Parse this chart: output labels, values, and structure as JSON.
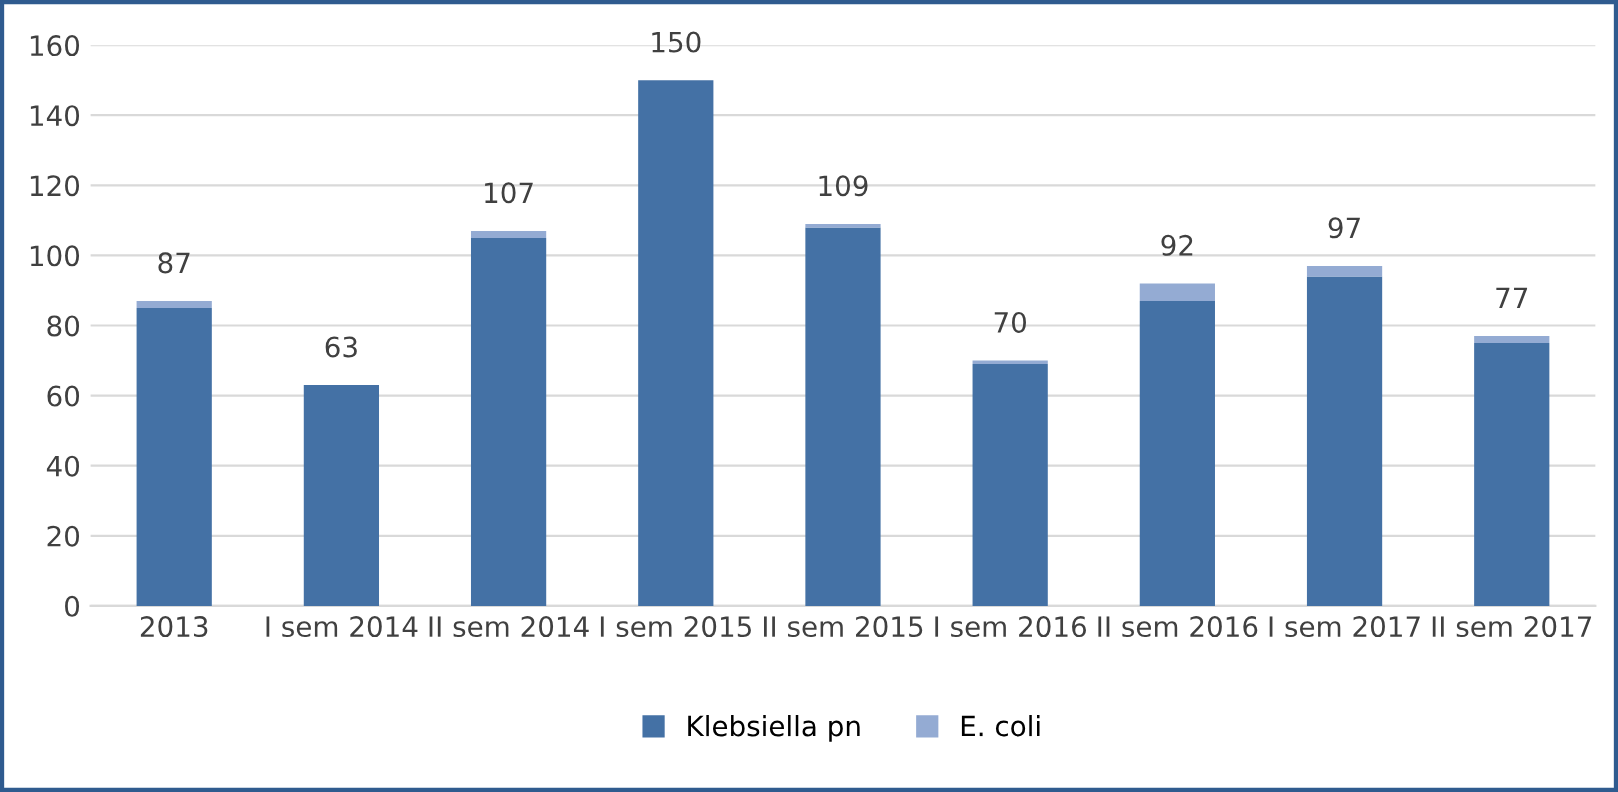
{
  "chart_data": {
    "type": "bar",
    "stacked": true,
    "categories": [
      "2013",
      "I sem 2014",
      "II sem 2014",
      "I sem 2015",
      "II sem 2015",
      "I sem 2016",
      "II sem 2016",
      "I sem 2017",
      "II sem 2017"
    ],
    "series": [
      {
        "name": "Klebsiella pn",
        "color": "#4471a5",
        "values": [
          85,
          63,
          105,
          150,
          108,
          69,
          87,
          94,
          75
        ]
      },
      {
        "name": "E. coli",
        "color": "#94abd3",
        "values": [
          2,
          0,
          2,
          0,
          1,
          1,
          5,
          3,
          2
        ]
      }
    ],
    "totals": [
      "87",
      "63",
      "107",
      "150",
      "109",
      "70",
      "92",
      "97",
      "77"
    ],
    "ylim": [
      0,
      160
    ],
    "yticks": [
      0,
      20,
      40,
      60,
      80,
      100,
      120,
      140,
      160
    ],
    "grid": "y",
    "legend": "bottom"
  }
}
